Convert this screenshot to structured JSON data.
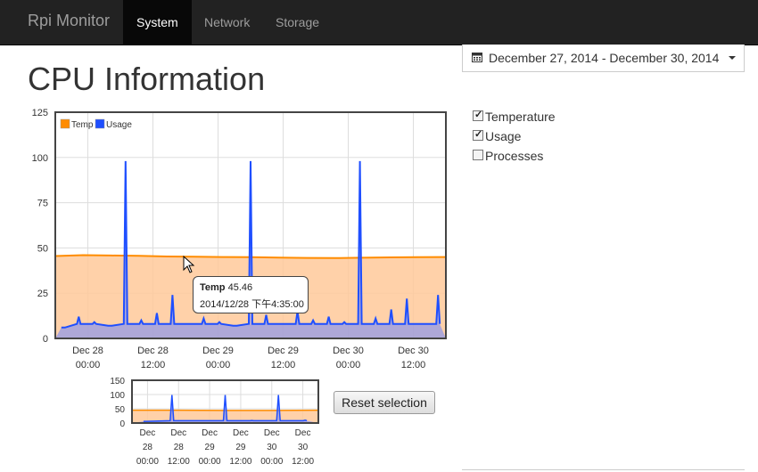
{
  "navbar": {
    "brand": "Rpi Monitor",
    "items": [
      {
        "label": "System",
        "active": true
      },
      {
        "label": "Network",
        "active": false
      },
      {
        "label": "Storage",
        "active": false
      }
    ]
  },
  "page": {
    "title": "CPU Information"
  },
  "date_range": {
    "icon": "calendar-icon",
    "text": "December 27, 2014 - December 30, 2014"
  },
  "series_toggles": [
    {
      "label": "Temperature",
      "checked": true
    },
    {
      "label": "Usage",
      "checked": true
    },
    {
      "label": "Processes",
      "checked": false
    }
  ],
  "colors": {
    "temp": "#ff8c00",
    "usage": "#1f4fff",
    "navbar": "#222222"
  },
  "chart_data": [
    {
      "type": "area",
      "legend": [
        "Temp",
        "Usage"
      ],
      "legend_position": "top-left",
      "grid": true,
      "ylim": [
        0,
        125
      ],
      "yticks": [
        "0",
        "25",
        "50",
        "75",
        "100",
        "125"
      ],
      "xticks": [
        {
          "l1": "Dec 28",
          "l2": "00:00"
        },
        {
          "l1": "Dec 28",
          "l2": "12:00"
        },
        {
          "l1": "Dec 29",
          "l2": "00:00"
        },
        {
          "l1": "Dec 29",
          "l2": "12:00"
        },
        {
          "l1": "Dec 30",
          "l2": "00:00"
        },
        {
          "l1": "Dec 30",
          "l2": "12:00"
        }
      ],
      "series": [
        {
          "name": "Temp",
          "values": [
            45.5,
            46,
            45.8,
            45.6,
            45.3,
            45.2,
            45,
            44.9,
            44.7,
            44.5,
            44.4,
            44.6,
            44.8,
            44.9,
            45
          ]
        },
        {
          "name": "Usage",
          "values": [
            6,
            12,
            9,
            7,
            98,
            10,
            14,
            24,
            8,
            11,
            9,
            7,
            98,
            13,
            8,
            15,
            10,
            12,
            9,
            98,
            11,
            16,
            22,
            8,
            24
          ]
        }
      ],
      "tooltip": {
        "series": "Temp",
        "value": "45.46",
        "time": "2014/12/28 下午4:35:00"
      }
    },
    {
      "type": "area",
      "ylim": [
        0,
        150
      ],
      "yticks": [
        "0",
        "50",
        "100",
        "150"
      ],
      "xticks": [
        {
          "l1": "Dec",
          "l2": "28",
          "l3": "00:00"
        },
        {
          "l1": "Dec",
          "l2": "28",
          "l3": "12:00"
        },
        {
          "l1": "Dec",
          "l2": "29",
          "l3": "00:00"
        },
        {
          "l1": "Dec",
          "l2": "29",
          "l3": "12:00"
        },
        {
          "l1": "Dec",
          "l2": "30",
          "l3": "00:00"
        },
        {
          "l1": "Dec",
          "l2": "30",
          "l3": "12:00"
        }
      ],
      "series": [
        {
          "name": "Temp",
          "values": [
            45,
            45,
            44,
            44,
            45
          ]
        },
        {
          "name": "Usage",
          "values": [
            6,
            98,
            8,
            98,
            9,
            98,
            10
          ]
        }
      ]
    }
  ],
  "reset_button": "Reset selection"
}
